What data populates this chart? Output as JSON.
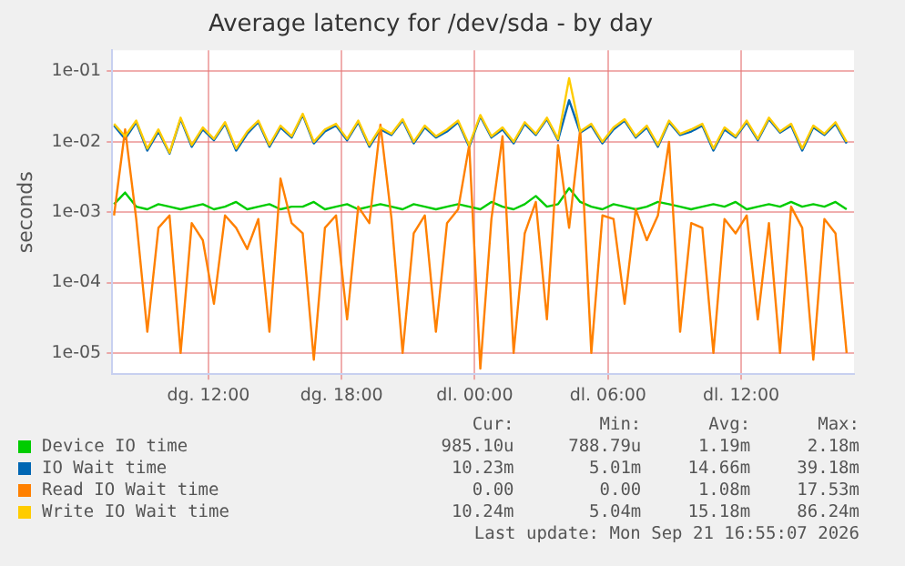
{
  "chart_data": {
    "type": "line",
    "title": "Average latency for /dev/sda - by day",
    "ylabel": "seconds",
    "log": true,
    "grid": true,
    "legend": "bottom",
    "marker": "none",
    "line_style": "solid",
    "xlim": [
      "2026-09-20T07:40",
      "2026-09-21T17:05"
    ],
    "xticks": [
      {
        "value": "2026-09-20T12:00",
        "label": "dg. 12:00"
      },
      {
        "value": "2026-09-20T18:00",
        "label": "dg. 18:00"
      },
      {
        "value": "2026-09-21T00:00",
        "label": "dl. 00:00"
      },
      {
        "value": "2026-09-21T06:00",
        "label": "dl. 06:00"
      },
      {
        "value": "2026-09-21T12:00",
        "label": "dl. 12:00"
      }
    ],
    "ylim": [
      5e-06,
      0.2
    ],
    "yticks": [
      {
        "value": 1e-05,
        "label": "1e-05"
      },
      {
        "value": 0.0001,
        "label": "1e-04"
      },
      {
        "value": 0.001,
        "label": "1e-03"
      },
      {
        "value": 0.01,
        "label": "1e-02"
      },
      {
        "value": 0.1,
        "label": "1e-01"
      }
    ],
    "x": [
      "2026-09-20T07:45",
      "2026-09-20T08:15",
      "2026-09-20T08:45",
      "2026-09-20T09:15",
      "2026-09-20T09:45",
      "2026-09-20T10:15",
      "2026-09-20T10:45",
      "2026-09-20T11:15",
      "2026-09-20T11:45",
      "2026-09-20T12:15",
      "2026-09-20T12:45",
      "2026-09-20T13:15",
      "2026-09-20T13:45",
      "2026-09-20T14:15",
      "2026-09-20T14:45",
      "2026-09-20T15:15",
      "2026-09-20T15:45",
      "2026-09-20T16:15",
      "2026-09-20T16:45",
      "2026-09-20T17:15",
      "2026-09-20T17:45",
      "2026-09-20T18:15",
      "2026-09-20T18:45",
      "2026-09-20T19:15",
      "2026-09-20T19:45",
      "2026-09-20T20:15",
      "2026-09-20T20:45",
      "2026-09-20T21:15",
      "2026-09-20T21:45",
      "2026-09-20T22:15",
      "2026-09-20T22:45",
      "2026-09-20T23:15",
      "2026-09-20T23:45",
      "2026-09-21T00:15",
      "2026-09-21T00:45",
      "2026-09-21T01:15",
      "2026-09-21T01:45",
      "2026-09-21T02:15",
      "2026-09-21T02:45",
      "2026-09-21T03:15",
      "2026-09-21T03:45",
      "2026-09-21T04:15",
      "2026-09-21T04:45",
      "2026-09-21T05:15",
      "2026-09-21T05:45",
      "2026-09-21T06:15",
      "2026-09-21T06:45",
      "2026-09-21T07:15",
      "2026-09-21T07:45",
      "2026-09-21T08:15",
      "2026-09-21T08:45",
      "2026-09-21T09:15",
      "2026-09-21T09:45",
      "2026-09-21T10:15",
      "2026-09-21T10:45",
      "2026-09-21T11:15",
      "2026-09-21T11:45",
      "2026-09-21T12:15",
      "2026-09-21T12:45",
      "2026-09-21T13:15",
      "2026-09-21T13:45",
      "2026-09-21T14:15",
      "2026-09-21T14:45",
      "2026-09-21T15:15",
      "2026-09-21T15:45",
      "2026-09-21T16:15",
      "2026-09-21T16:45"
    ],
    "series": [
      {
        "name": "Device IO time",
        "color": "#00cc00",
        "values": [
          0.0013,
          0.0019,
          0.0012,
          0.0011,
          0.0013,
          0.0012,
          0.0011,
          0.0012,
          0.0013,
          0.0011,
          0.0012,
          0.0014,
          0.0011,
          0.0012,
          0.0013,
          0.0011,
          0.0012,
          0.0012,
          0.0014,
          0.0011,
          0.0012,
          0.0013,
          0.0011,
          0.0012,
          0.0013,
          0.0012,
          0.0011,
          0.0013,
          0.0012,
          0.0011,
          0.0012,
          0.0013,
          0.0012,
          0.0011,
          0.0014,
          0.0012,
          0.0011,
          0.0013,
          0.0017,
          0.0012,
          0.0013,
          0.0022,
          0.0014,
          0.0012,
          0.0011,
          0.0013,
          0.0012,
          0.0011,
          0.0012,
          0.0014,
          0.0013,
          0.0012,
          0.0011,
          0.0012,
          0.0013,
          0.0012,
          0.0014,
          0.0011,
          0.0012,
          0.0013,
          0.0012,
          0.0014,
          0.0012,
          0.0013,
          0.0012,
          0.0014,
          0.0011
        ]
      },
      {
        "name": "IO Wait time",
        "color": "#0066b3",
        "values": [
          0.017,
          0.011,
          0.019,
          0.0075,
          0.014,
          0.0068,
          0.021,
          0.0085,
          0.015,
          0.0105,
          0.018,
          0.0075,
          0.013,
          0.019,
          0.0085,
          0.016,
          0.0115,
          0.024,
          0.0095,
          0.014,
          0.017,
          0.0105,
          0.019,
          0.0085,
          0.015,
          0.0125,
          0.02,
          0.0095,
          0.016,
          0.0115,
          0.014,
          0.019,
          0.0085,
          0.023,
          0.0115,
          0.015,
          0.0095,
          0.018,
          0.0125,
          0.021,
          0.0105,
          0.039,
          0.0135,
          0.017,
          0.0095,
          0.015,
          0.02,
          0.0115,
          0.016,
          0.0085,
          0.019,
          0.0125,
          0.014,
          0.017,
          0.0075,
          0.015,
          0.0115,
          0.019,
          0.0105,
          0.021,
          0.0135,
          0.017,
          0.0075,
          0.016,
          0.0125,
          0.018,
          0.0095
        ]
      },
      {
        "name": "Read IO Wait time",
        "color": "#ff8000",
        "values": [
          0.0009,
          0.015,
          0.0008,
          2e-05,
          0.0006,
          0.0009,
          1e-05,
          0.0007,
          0.0004,
          5e-05,
          0.0009,
          0.0006,
          0.0003,
          0.0008,
          2e-05,
          0.003,
          0.0007,
          0.0005,
          8e-06,
          0.0006,
          0.0009,
          3e-05,
          0.0012,
          0.0007,
          0.0175,
          0.0008,
          1e-05,
          0.0005,
          0.0009,
          2e-05,
          0.0007,
          0.0011,
          0.009,
          6e-06,
          0.0008,
          0.012,
          1e-05,
          0.0005,
          0.0014,
          3e-05,
          0.009,
          0.0006,
          0.015,
          1e-05,
          0.0009,
          0.0008,
          5e-05,
          0.0011,
          0.0004,
          0.0009,
          0.01,
          2e-05,
          0.0007,
          0.0006,
          1e-05,
          0.0008,
          0.0005,
          0.0009,
          3e-05,
          0.0007,
          1e-05,
          0.0012,
          0.0006,
          8e-06,
          0.0008,
          0.0005,
          1e-05
        ]
      },
      {
        "name": "Write IO Wait time",
        "color": "#ffcc00",
        "values": [
          0.018,
          0.012,
          0.02,
          0.008,
          0.015,
          0.007,
          0.022,
          0.009,
          0.016,
          0.011,
          0.019,
          0.008,
          0.014,
          0.02,
          0.009,
          0.017,
          0.012,
          0.025,
          0.01,
          0.015,
          0.018,
          0.011,
          0.02,
          0.009,
          0.016,
          0.013,
          0.021,
          0.01,
          0.017,
          0.012,
          0.015,
          0.02,
          0.009,
          0.024,
          0.012,
          0.016,
          0.01,
          0.019,
          0.013,
          0.022,
          0.011,
          0.08,
          0.014,
          0.018,
          0.01,
          0.016,
          0.021,
          0.012,
          0.017,
          0.009,
          0.02,
          0.013,
          0.015,
          0.018,
          0.008,
          0.016,
          0.012,
          0.02,
          0.011,
          0.022,
          0.014,
          0.018,
          0.008,
          0.017,
          0.013,
          0.019,
          0.01
        ]
      }
    ],
    "annotations": [
      "Cur:",
      "Min:",
      "Avg:",
      "Max:",
      "985.10u",
      "788.79u",
      "1.19m",
      "2.18m",
      "10.23m",
      "5.01m",
      "14.66m",
      "39.18m",
      "0.00",
      "0.00",
      "1.08m",
      "17.53m",
      "10.24m",
      "5.04m",
      "15.18m",
      "86.24m",
      "Last update: Mon Sep 21 16:55:07 2026"
    ]
  }
}
